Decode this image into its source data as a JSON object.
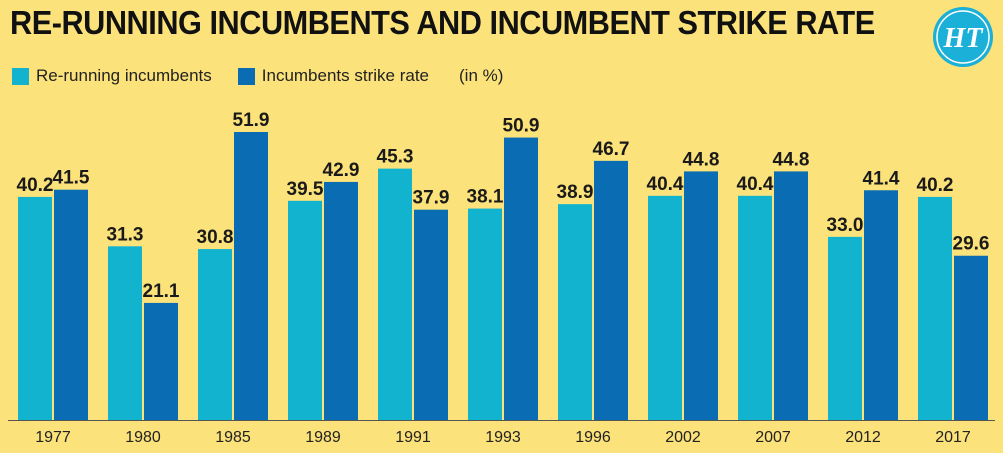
{
  "header": {
    "title": "RE-RUNNING INCUMBENTS AND INCUMBENT STRIKE RATE",
    "logo_text": "HT"
  },
  "legend": {
    "unit": "(in %)"
  },
  "colors": {
    "background": "#fbe27a",
    "rerunning": "#12b3cf",
    "strike_rate": "#0a6db3",
    "logo": "#1ab0d8"
  },
  "chart_data": {
    "type": "bar",
    "categories": [
      "1977",
      "1980",
      "1985",
      "1989",
      "1991",
      "1993",
      "1996",
      "2002",
      "2007",
      "2012",
      "2017"
    ],
    "series": [
      {
        "name": "Re-running incumbents",
        "values": [
          40.2,
          31.3,
          30.8,
          39.5,
          45.3,
          38.1,
          38.9,
          40.4,
          40.4,
          33.0,
          40.2
        ]
      },
      {
        "name": "Incumbents strike rate",
        "values": [
          41.5,
          21.1,
          51.9,
          42.9,
          37.9,
          50.9,
          46.7,
          44.8,
          44.8,
          41.4,
          29.6
        ]
      }
    ],
    "title": "RE-RUNNING INCUMBENTS AND INCUMBENT STRIKE RATE",
    "xlabel": "",
    "ylabel": "",
    "unit": "(in %)",
    "ylim": [
      0,
      51.9
    ],
    "grid": false,
    "legend_position": "top-left"
  }
}
